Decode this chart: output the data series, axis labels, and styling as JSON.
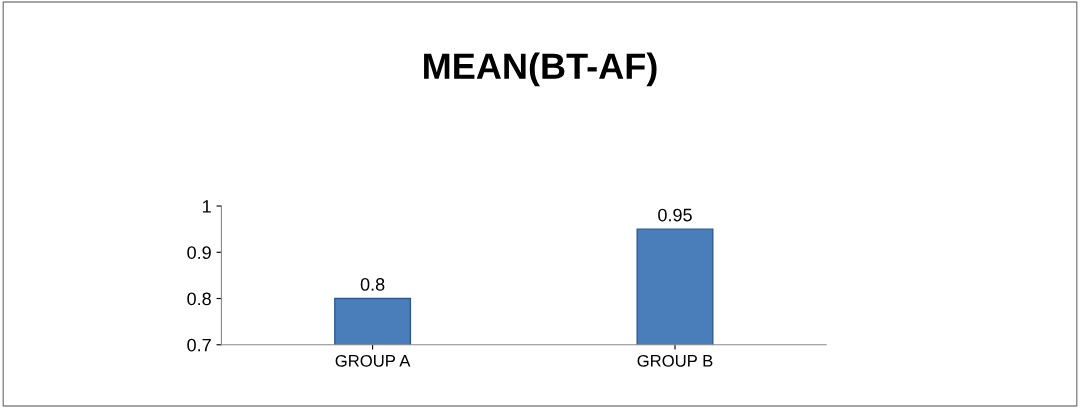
{
  "chart_data": {
    "type": "bar",
    "title": "MEAN(BT-AF)",
    "categories": [
      "GROUP A",
      "GROUP B"
    ],
    "values": [
      0.8,
      0.95
    ],
    "color": "#4a7ebb",
    "ylim": [
      0.7,
      1
    ],
    "yticks": [
      0.7,
      0.8,
      0.9,
      1
    ],
    "data_labels": true,
    "grid": false,
    "legend": false
  }
}
